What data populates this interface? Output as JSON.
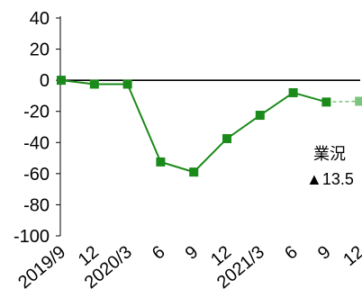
{
  "chart_data": {
    "type": "line",
    "title": "",
    "xlabel": "",
    "ylabel": "",
    "ylim": [
      -100,
      40
    ],
    "yticks": [
      40,
      20,
      0,
      -20,
      -40,
      -60,
      -80,
      -100
    ],
    "grid": false,
    "legend": "none",
    "categories": [
      "2019/9",
      "12",
      "2020/3",
      "6",
      "9",
      "12",
      "2021/3",
      "6",
      "9",
      "12"
    ],
    "series": [
      {
        "values": [
          0,
          -2.5,
          -2.5,
          -52.5,
          -59,
          -37.5,
          -22.5,
          -8,
          -14,
          null
        ],
        "color": "#1a8a1a",
        "line_style": "solid",
        "marker": "square"
      },
      {
        "values": [
          null,
          null,
          null,
          null,
          null,
          null,
          null,
          null,
          -14,
          -13.5
        ],
        "color": "#7cc47c",
        "line_style": "dashed",
        "marker": "square",
        "projection": true
      }
    ],
    "annotations": [
      {
        "text": "業況",
        "category": "9"
      },
      {
        "text": "▲13.5",
        "category": "12"
      }
    ],
    "zero_line": true
  }
}
